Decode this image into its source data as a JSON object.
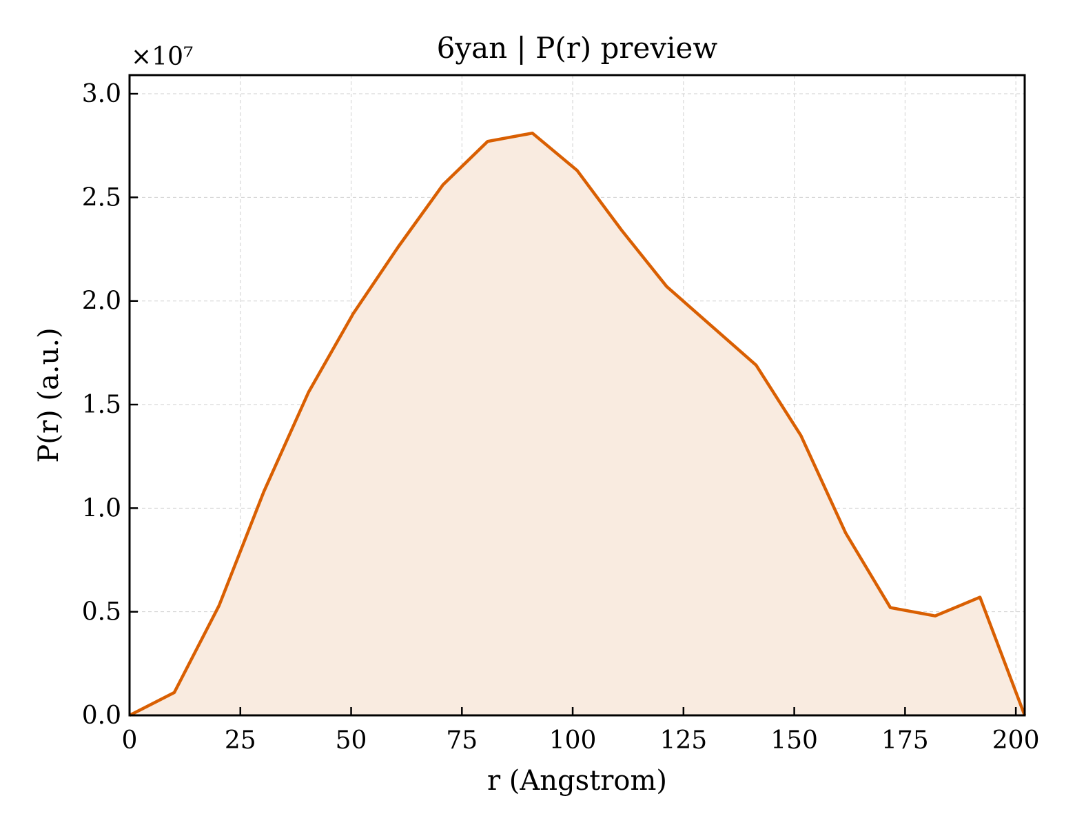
{
  "chart_data": {
    "type": "area",
    "title": "6yan | P(r) preview",
    "xlabel": "r (Angstrom)",
    "ylabel": "P(r) (a.u.)",
    "y_multiplier_label": "×10⁷",
    "y_scale_factor": 10000000,
    "xlim": [
      0,
      202
    ],
    "ylim": [
      0,
      3.09
    ],
    "xticks": [
      0,
      25,
      50,
      75,
      100,
      125,
      150,
      175,
      200
    ],
    "yticks": [
      0.0,
      0.5,
      1.0,
      1.5,
      2.0,
      2.5,
      3.0
    ],
    "ytick_labels": [
      "0.0",
      "0.5",
      "1.0",
      "1.5",
      "2.0",
      "2.5",
      "3.0"
    ],
    "grid": true,
    "series": [
      {
        "line_color": "#d95f02",
        "fill_color": "#f9ebe0",
        "x": [
          0,
          10.1,
          20.2,
          30.3,
          40.4,
          50.5,
          60.6,
          70.7,
          80.8,
          90.9,
          101.0,
          111.1,
          121.2,
          131.3,
          141.4,
          151.5,
          161.6,
          171.7,
          181.8,
          191.9,
          202.0
        ],
        "y": [
          0.0,
          0.11,
          0.53,
          1.08,
          1.56,
          1.94,
          2.26,
          2.56,
          2.77,
          2.81,
          2.63,
          2.34,
          2.07,
          1.88,
          1.69,
          1.35,
          0.88,
          0.52,
          0.48,
          0.57,
          0.0
        ]
      }
    ]
  }
}
